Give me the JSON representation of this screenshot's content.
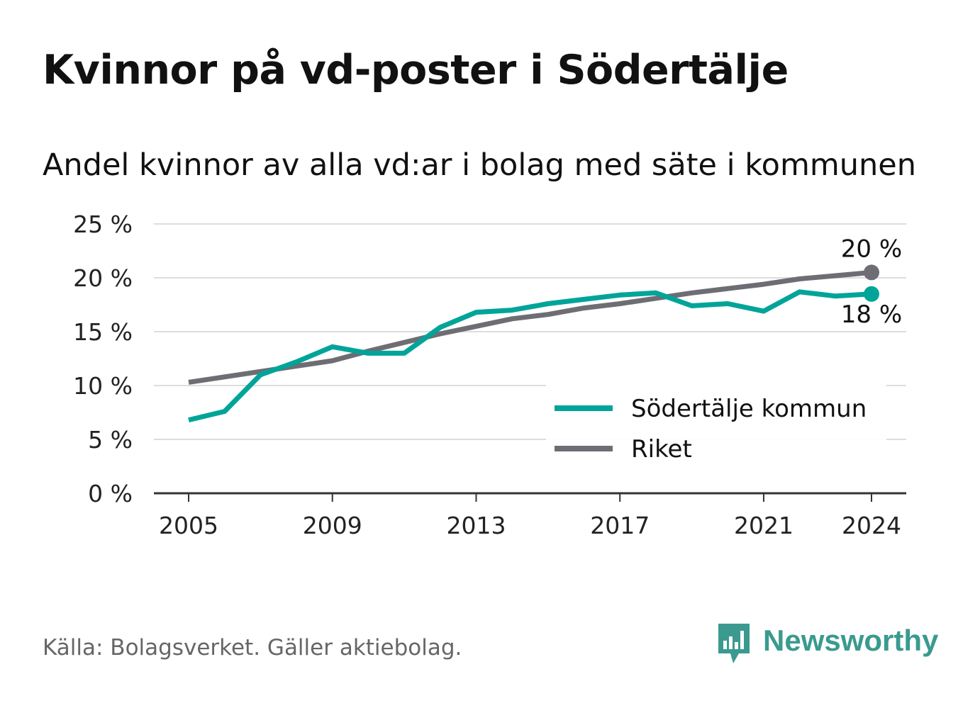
{
  "title": "Kvinnor på vd-poster i Södertälje",
  "subtitle": "Andel kvinnor av alla vd:ar i bolag med säte i kommunen",
  "source": "Källa: Bolagsverket. Gäller aktiebolag.",
  "brand": "Newsworthy",
  "colors": {
    "sodertalje": "#00a499",
    "riket": "#6e6d73",
    "grid": "#dddddd",
    "axis": "#333333",
    "brand": "#3a9a8f"
  },
  "chart_data": {
    "type": "line",
    "x": [
      2005,
      2006,
      2007,
      2008,
      2009,
      2010,
      2011,
      2012,
      2013,
      2014,
      2015,
      2016,
      2017,
      2018,
      2019,
      2020,
      2021,
      2022,
      2023,
      2024
    ],
    "series": [
      {
        "name": "Södertälje kommun",
        "color": "#00a499",
        "values": [
          6.8,
          7.6,
          11.0,
          12.2,
          13.6,
          13.0,
          13.0,
          15.4,
          16.8,
          17.0,
          17.6,
          18.0,
          18.4,
          18.6,
          17.4,
          17.6,
          16.9,
          18.7,
          18.3,
          18.5
        ],
        "end_label": "18 %"
      },
      {
        "name": "Riket",
        "color": "#6e6d73",
        "values": [
          10.3,
          10.8,
          11.3,
          11.8,
          12.3,
          13.2,
          14.0,
          14.8,
          15.5,
          16.2,
          16.6,
          17.2,
          17.6,
          18.1,
          18.6,
          19.0,
          19.4,
          19.9,
          20.2,
          20.5
        ],
        "end_label": "20 %"
      }
    ],
    "x_ticks": [
      2005,
      2009,
      2013,
      2017,
      2021,
      2024
    ],
    "y_ticks": [
      0,
      5,
      10,
      15,
      20,
      25
    ],
    "y_tick_labels": [
      "0 %",
      "5 %",
      "10 %",
      "15 %",
      "20 %",
      "25 %"
    ],
    "ylim": [
      0,
      25
    ],
    "xlim": [
      2005,
      2024
    ],
    "xlabel": "",
    "ylabel": "",
    "grid": true,
    "legend_position": "bottom-right"
  }
}
